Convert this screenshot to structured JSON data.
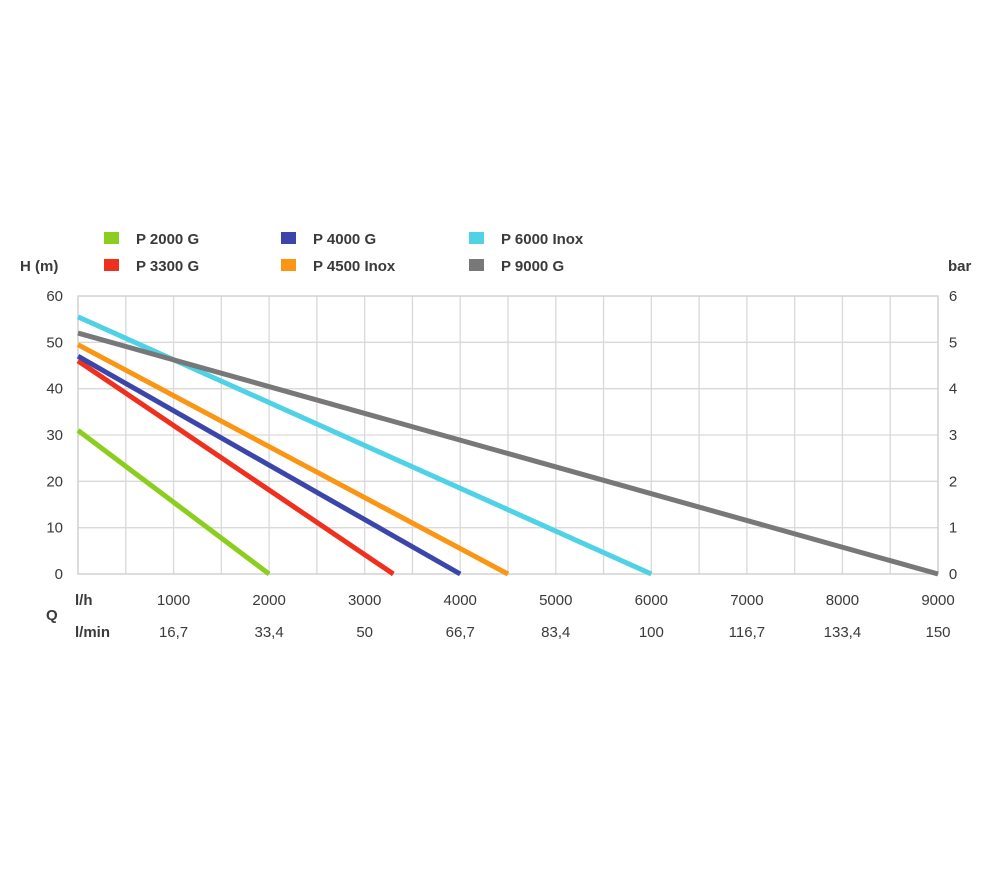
{
  "chart_data": {
    "type": "line",
    "y_left_label": "H (m)",
    "y_right_label": "bar",
    "q_label": "Q",
    "row1_unit": "l/h",
    "row2_unit": "l/min",
    "x_range": [
      0,
      9000
    ],
    "y_range": [
      0,
      60
    ],
    "grid": true,
    "legend_position": "top",
    "y_left_ticks": [
      "0",
      "10",
      "20",
      "30",
      "40",
      "50",
      "60"
    ],
    "y_right_ticks": [
      "0",
      "1",
      "2",
      "3",
      "4",
      "5",
      "6"
    ],
    "x_ticks_lh": [
      "1000",
      "2000",
      "3000",
      "4000",
      "5000",
      "6000",
      "7000",
      "8000",
      "9000"
    ],
    "x_ticks_lmin": [
      "16,7",
      "33,4",
      "50",
      "66,7",
      "83,4",
      "100",
      "116,7",
      "133,4",
      "150"
    ],
    "series": [
      {
        "name": "P 2000 G",
        "color": "#8cce1e",
        "points": [
          [
            0,
            31
          ],
          [
            2000,
            0
          ]
        ]
      },
      {
        "name": "P 3300 G",
        "color": "#f0301e",
        "points": [
          [
            0,
            46
          ],
          [
            3300,
            0
          ]
        ]
      },
      {
        "name": "P 4000 G",
        "color": "#3c46aa",
        "points": [
          [
            0,
            47
          ],
          [
            4000,
            0
          ]
        ]
      },
      {
        "name": "P 4500 Inox",
        "color": "#fa9614",
        "points": [
          [
            0,
            49.5
          ],
          [
            4500,
            0
          ]
        ]
      },
      {
        "name": "P 6000 Inox",
        "color": "#50d2e6",
        "points": [
          [
            0,
            55.5
          ],
          [
            6000,
            0
          ]
        ]
      },
      {
        "name": "P 9000 G",
        "color": "#787878",
        "points": [
          [
            0,
            52
          ],
          [
            9000,
            0
          ]
        ]
      }
    ]
  }
}
